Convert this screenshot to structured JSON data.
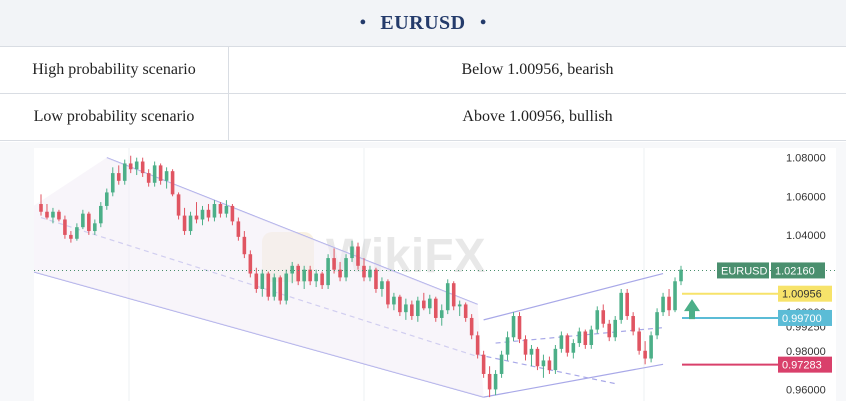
{
  "header": {
    "title": "EURUSD",
    "bullet": "•"
  },
  "table": {
    "rows": [
      {
        "label": "High probability scenario",
        "value": "Below 1.00956, bearish"
      },
      {
        "label": "Low probability scenario",
        "value": "Above 1.00956, bullish"
      }
    ]
  },
  "colors": {
    "bull": "#4caf88",
    "bear": "#e05562",
    "channel": "#a8a8e8",
    "current_price": "#4a8f6e",
    "level_1": "#f7e36a",
    "level_2": "#5bbcd6",
    "level_3": "#d9406b"
  },
  "watermark": "WikiFX",
  "chart_data": {
    "type": "candlestick",
    "symbol": "EURUSD",
    "ylim": [
      0.954,
      1.085
    ],
    "y_ticks": [
      "1.08000",
      "1.06000",
      "1.04000",
      "1.00000",
      "0.99250",
      "0.98000",
      "0.96000"
    ],
    "current_price": {
      "label": "EURUSD",
      "value": "1.02160"
    },
    "levels": [
      {
        "value": "1.00956",
        "role": "pivot"
      },
      {
        "value": "0.99700",
        "role": "support"
      },
      {
        "value": "0.97283",
        "role": "support"
      }
    ],
    "candles": [
      [
        1.056,
        1.061,
        1.05,
        1.052
      ],
      [
        1.052,
        1.056,
        1.048,
        1.049
      ],
      [
        1.049,
        1.054,
        1.046,
        1.052
      ],
      [
        1.052,
        1.053,
        1.047,
        1.048
      ],
      [
        1.048,
        1.05,
        1.038,
        1.04
      ],
      [
        1.04,
        1.042,
        1.036,
        1.038
      ],
      [
        1.038,
        1.046,
        1.037,
        1.044
      ],
      [
        1.044,
        1.053,
        1.043,
        1.051
      ],
      [
        1.051,
        1.052,
        1.04,
        1.042
      ],
      [
        1.042,
        1.048,
        1.04,
        1.046
      ],
      [
        1.046,
        1.057,
        1.044,
        1.055
      ],
      [
        1.055,
        1.064,
        1.053,
        1.062
      ],
      [
        1.062,
        1.075,
        1.06,
        1.072
      ],
      [
        1.072,
        1.076,
        1.066,
        1.068
      ],
      [
        1.068,
        1.079,
        1.066,
        1.077
      ],
      [
        1.077,
        1.081,
        1.072,
        1.074
      ],
      [
        1.074,
        1.08,
        1.071,
        1.078
      ],
      [
        1.078,
        1.08,
        1.07,
        1.072
      ],
      [
        1.072,
        1.074,
        1.065,
        1.067
      ],
      [
        1.067,
        1.078,
        1.065,
        1.076
      ],
      [
        1.076,
        1.077,
        1.066,
        1.068
      ],
      [
        1.068,
        1.075,
        1.064,
        1.073
      ],
      [
        1.073,
        1.074,
        1.06,
        1.061
      ],
      [
        1.061,
        1.062,
        1.048,
        1.05
      ],
      [
        1.05,
        1.054,
        1.04,
        1.042
      ],
      [
        1.042,
        1.052,
        1.04,
        1.05
      ],
      [
        1.05,
        1.057,
        1.046,
        1.048
      ],
      [
        1.048,
        1.055,
        1.045,
        1.053
      ],
      [
        1.053,
        1.056,
        1.047,
        1.049
      ],
      [
        1.049,
        1.058,
        1.047,
        1.056
      ],
      [
        1.056,
        1.057,
        1.049,
        1.051
      ],
      [
        1.051,
        1.058,
        1.049,
        1.055
      ],
      [
        1.055,
        1.056,
        1.045,
        1.047
      ],
      [
        1.047,
        1.049,
        1.037,
        1.039
      ],
      [
        1.039,
        1.042,
        1.028,
        1.03
      ],
      [
        1.03,
        1.032,
        1.018,
        1.02
      ],
      [
        1.02,
        1.023,
        1.01,
        1.012
      ],
      [
        1.012,
        1.022,
        1.008,
        1.02
      ],
      [
        1.02,
        1.021,
        1.006,
        1.008
      ],
      [
        1.008,
        1.02,
        1.006,
        1.018
      ],
      [
        1.018,
        1.019,
        1.004,
        1.006
      ],
      [
        1.006,
        1.022,
        1.004,
        1.02
      ],
      [
        1.02,
        1.026,
        1.015,
        1.024
      ],
      [
        1.024,
        1.025,
        1.014,
        1.016
      ],
      [
        1.016,
        1.024,
        1.012,
        1.022
      ],
      [
        1.022,
        1.024,
        1.014,
        1.016
      ],
      [
        1.016,
        1.022,
        1.013,
        1.02
      ],
      [
        1.02,
        1.021,
        1.012,
        1.014
      ],
      [
        1.014,
        1.03,
        1.012,
        1.028
      ],
      [
        1.028,
        1.033,
        1.02,
        1.022
      ],
      [
        1.022,
        1.026,
        1.016,
        1.018
      ],
      [
        1.018,
        1.03,
        1.016,
        1.028
      ],
      [
        1.028,
        1.037,
        1.026,
        1.034
      ],
      [
        1.034,
        1.036,
        1.022,
        1.024
      ],
      [
        1.024,
        1.028,
        1.016,
        1.018
      ],
      [
        1.018,
        1.024,
        1.016,
        1.022
      ],
      [
        1.022,
        1.023,
        1.01,
        1.012
      ],
      [
        1.012,
        1.018,
        1.008,
        1.016
      ],
      [
        1.016,
        1.017,
        1.002,
        1.004
      ],
      [
        1.004,
        1.01,
        1.001,
        1.008
      ],
      [
        1.008,
        1.009,
        0.998,
        1.0
      ],
      [
        1.0,
        1.007,
        0.996,
        1.004
      ],
      [
        1.004,
        1.006,
        0.996,
        0.998
      ],
      [
        0.998,
        1.008,
        0.995,
        1.006
      ],
      [
        1.006,
        1.01,
        1.001,
        1.002
      ],
      [
        1.002,
        1.009,
        0.999,
        1.007
      ],
      [
        1.007,
        1.008,
        0.995,
        0.997
      ],
      [
        0.997,
        1.004,
        0.993,
        1.001
      ],
      [
        1.001,
        1.017,
        0.999,
        1.015
      ],
      [
        1.015,
        1.016,
        1.001,
        1.003
      ],
      [
        1.003,
        1.006,
        0.998,
        1.004
      ],
      [
        1.004,
        1.005,
        0.995,
        0.997
      ],
      [
        0.997,
        0.999,
        0.986,
        0.988
      ],
      [
        0.988,
        0.99,
        0.976,
        0.978
      ],
      [
        0.978,
        0.98,
        0.966,
        0.968
      ],
      [
        0.968,
        0.972,
        0.956,
        0.96
      ],
      [
        0.96,
        0.97,
        0.957,
        0.968
      ],
      [
        0.968,
        0.98,
        0.966,
        0.978
      ],
      [
        0.978,
        0.99,
        0.975,
        0.987
      ],
      [
        0.987,
        1.0,
        0.985,
        0.998
      ],
      [
        0.998,
        1.0,
        0.984,
        0.986
      ],
      [
        0.986,
        0.988,
        0.975,
        0.978
      ],
      [
        0.978,
        0.983,
        0.972,
        0.981
      ],
      [
        0.981,
        0.982,
        0.97,
        0.972
      ],
      [
        0.972,
        0.978,
        0.966,
        0.975
      ],
      [
        0.975,
        0.977,
        0.968,
        0.97
      ],
      [
        0.97,
        0.983,
        0.968,
        0.981
      ],
      [
        0.981,
        0.99,
        0.979,
        0.988
      ],
      [
        0.988,
        0.989,
        0.977,
        0.979
      ],
      [
        0.979,
        0.986,
        0.976,
        0.984
      ],
      [
        0.984,
        0.992,
        0.982,
        0.99
      ],
      [
        0.99,
        0.991,
        0.981,
        0.983
      ],
      [
        0.983,
        0.993,
        0.981,
        0.991
      ],
      [
        0.991,
        1.003,
        0.989,
        1.001
      ],
      [
        1.001,
        1.004,
        0.992,
        0.994
      ],
      [
        0.994,
        0.996,
        0.985,
        0.987
      ],
      [
        0.987,
        0.998,
        0.985,
        0.996
      ],
      [
        0.996,
        1.012,
        0.994,
        1.01
      ],
      [
        1.01,
        1.012,
        0.996,
        0.998
      ],
      [
        0.998,
        1.0,
        0.988,
        0.99
      ],
      [
        0.99,
        0.992,
        0.978,
        0.98
      ],
      [
        0.98,
        0.985,
        0.973,
        0.976
      ],
      [
        0.976,
        0.99,
        0.974,
        0.988
      ],
      [
        0.988,
        1.002,
        0.986,
        1.0
      ],
      [
        1.0,
        1.01,
        0.998,
        1.008
      ],
      [
        1.008,
        1.012,
        0.998,
        1.001
      ],
      [
        1.001,
        1.018,
        1.0,
        1.016
      ],
      [
        1.016,
        1.024,
        1.014,
        1.022
      ]
    ]
  }
}
